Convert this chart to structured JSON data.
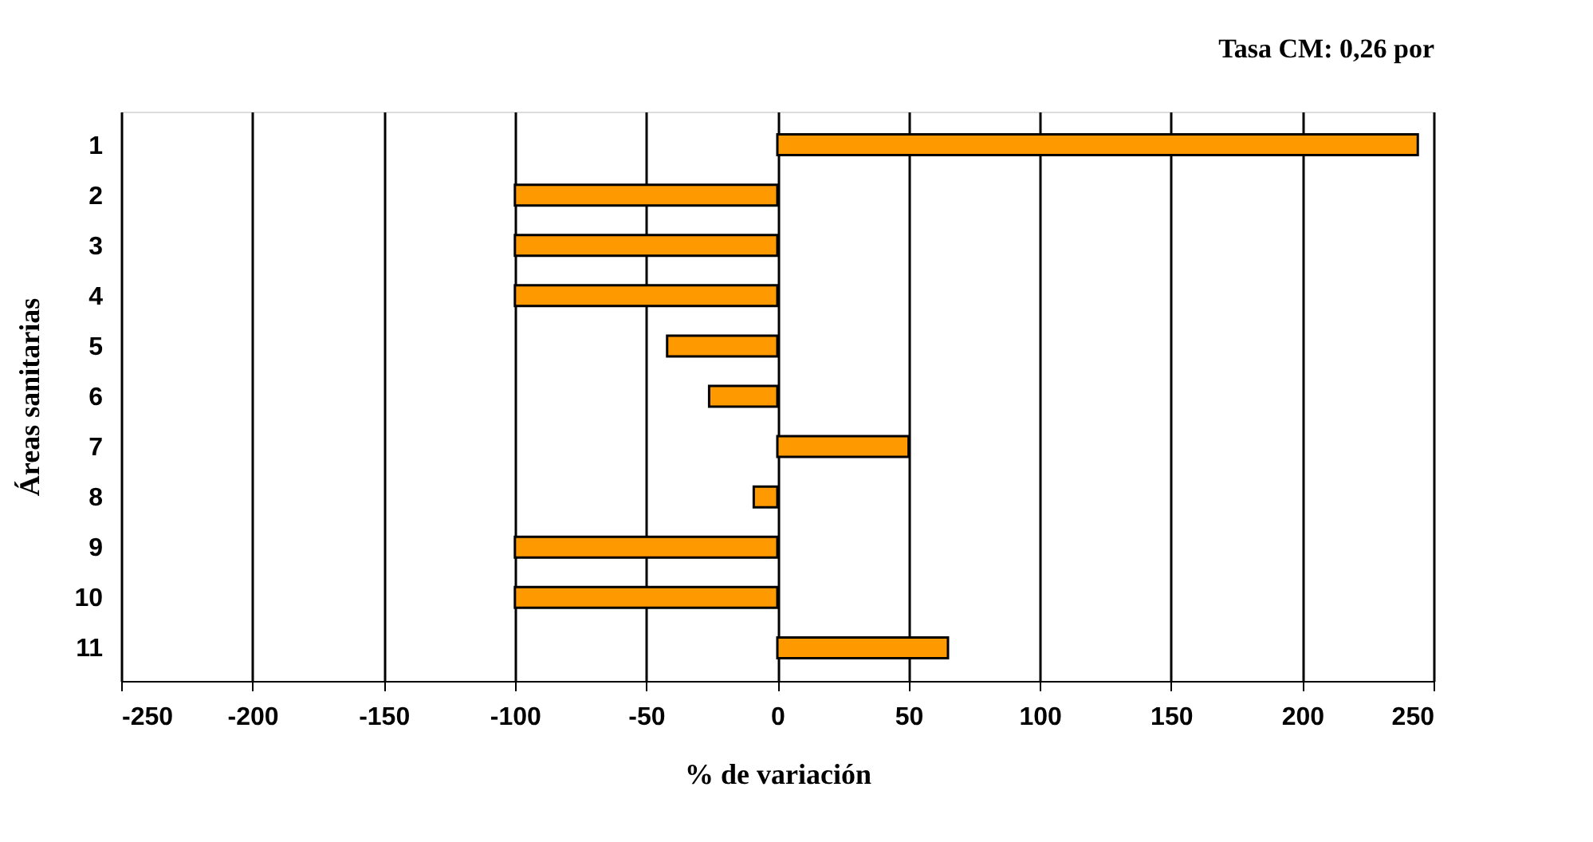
{
  "chart_data": {
    "type": "bar",
    "orientation": "horizontal",
    "title": "Tasa CM: 0,26 por",
    "xlabel": "% de variación",
    "ylabel": "Áreas sanitarias",
    "categories": [
      "1",
      "2",
      "3",
      "4",
      "5",
      "6",
      "7",
      "8",
      "9",
      "10",
      "11"
    ],
    "values": [
      244,
      -100,
      -100,
      -100,
      -42,
      -26,
      50,
      -9,
      -100,
      -100,
      65
    ],
    "color": "#ff9900",
    "xlim": [
      -250,
      250
    ],
    "xticks": [
      -250,
      -200,
      -150,
      -100,
      -50,
      0,
      50,
      100,
      150,
      200,
      250
    ],
    "grid": "x"
  }
}
